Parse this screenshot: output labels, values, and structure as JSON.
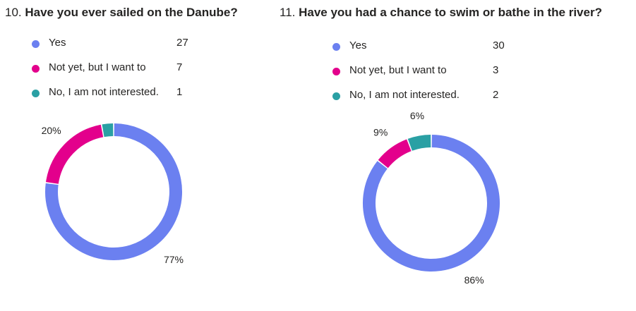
{
  "questions": [
    {
      "number": "10.",
      "title": "Have you ever sailed on the Danube?",
      "legend": [
        {
          "label": "Yes",
          "count": "27",
          "color": "#6B80F0",
          "icon": "dot-icon"
        },
        {
          "label": "Not yet, but I want to",
          "count": "7",
          "color": "#E3008C",
          "icon": "dot-icon"
        },
        {
          "label": "No, I am not interested.",
          "count": "1",
          "color": "#2AA0A4",
          "icon": "dot-icon"
        }
      ]
    },
    {
      "number": "11.",
      "title": "Have you had a chance to swim or bathe in the river?",
      "legend": [
        {
          "label": "Yes",
          "count": "30",
          "color": "#6B80F0",
          "icon": "dot-icon"
        },
        {
          "label": "Not yet, but I want to",
          "count": "3",
          "color": "#E3008C",
          "icon": "dot-icon"
        },
        {
          "label": "No, I am not interested.",
          "count": "2",
          "color": "#2AA0A4",
          "icon": "dot-icon"
        }
      ]
    }
  ],
  "chart_data": [
    {
      "type": "pie",
      "title": "Have you ever sailed on the Danube?",
      "categories": [
        "Yes",
        "Not yet, but I want to",
        "No, I am not interested."
      ],
      "values": [
        27,
        7,
        1
      ],
      "data_labels": [
        "77%",
        "20%",
        ""
      ],
      "colors": [
        "#6B80F0",
        "#E3008C",
        "#2AA0A4"
      ],
      "legend": "top"
    },
    {
      "type": "pie",
      "title": "Have you had a chance to swim or bathe in the river?",
      "categories": [
        "Yes",
        "Not yet, but I want to",
        "No, I am not interested."
      ],
      "values": [
        30,
        3,
        2
      ],
      "data_labels": [
        "86%",
        "9%",
        "6%"
      ],
      "colors": [
        "#6B80F0",
        "#E3008C",
        "#2AA0A4"
      ],
      "legend": "top"
    }
  ]
}
